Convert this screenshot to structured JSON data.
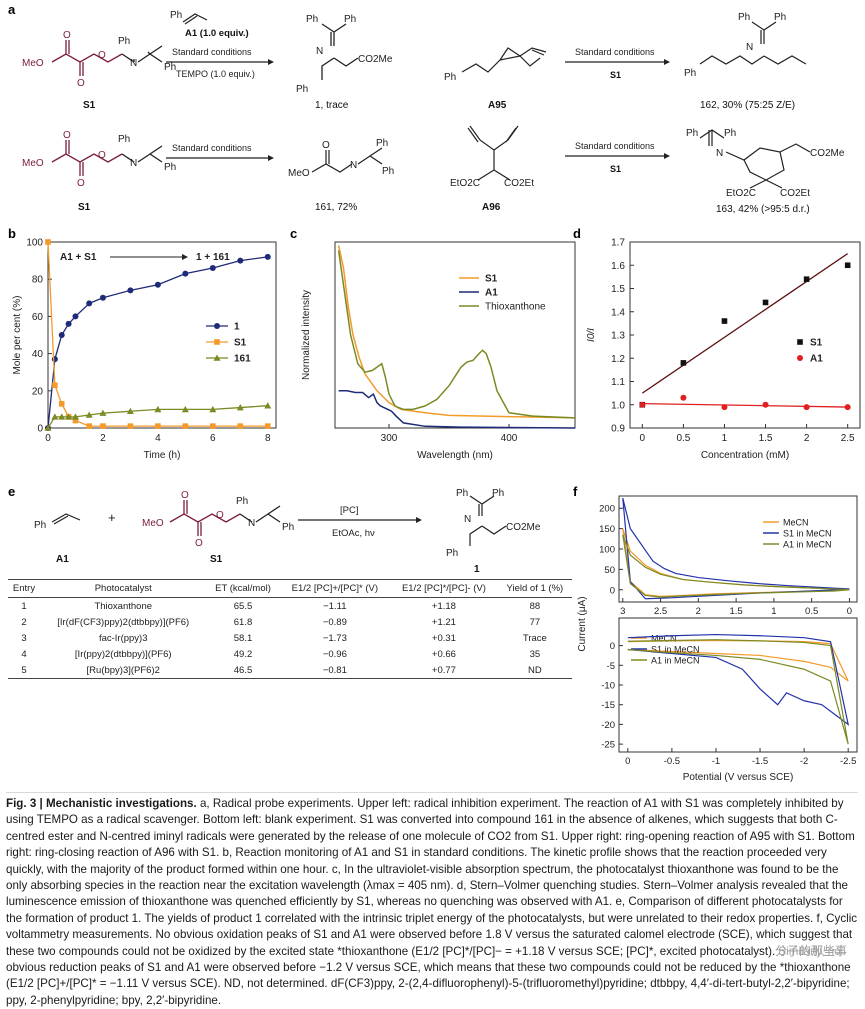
{
  "panels": {
    "a": "a",
    "b": "b",
    "c": "c",
    "d": "d",
    "e": "e",
    "f": "f"
  },
  "schemes": {
    "upper_left": {
      "s1_label": "S1",
      "reagent": "A1 (1.0 equiv.)",
      "cond1": "Standard conditions",
      "cond2": "TEMPO (1.0 equiv.)",
      "product": "1, trace"
    },
    "upper_right": {
      "substrate": "A95",
      "cond1": "Standard conditions",
      "cond2": "S1",
      "product": "162, 30% (75:25 Z/E)"
    },
    "lower_left": {
      "s1_label": "S1",
      "cond1": "Standard conditions",
      "product": "161, 72%"
    },
    "lower_right": {
      "substrate": "A96",
      "cond1": "Standard conditions",
      "cond2": "S1",
      "product": "163, 42% (>95:5 d.r.)"
    },
    "atoms": {
      "meo": "MeO",
      "o": "O",
      "n": "N",
      "ph": "Ph",
      "co2me": "CO2Me",
      "eto2c": "EtO2C",
      "co2et": "CO2Et"
    }
  },
  "scheme_e": {
    "a1": "A1",
    "s1": "S1",
    "plus": "+",
    "pc": "[PC]",
    "cond": "EtOAc, hν",
    "product": "1"
  },
  "table": {
    "headers": [
      "Entry",
      "Photocatalyst",
      "ET (kcal/mol)",
      "E1/2 [PC]+/[PC]* (V)",
      "E1/2 [PC]*/[PC]- (V)",
      "Yield of 1 (%)"
    ],
    "rows": [
      [
        "1",
        "Thioxanthone",
        "65.5",
        "−1.11",
        "+1.18",
        "88"
      ],
      [
        "2",
        "[Ir(dF(CF3)ppy)2(dtbbpy)](PF6)",
        "61.8",
        "−0.89",
        "+1.21",
        "77"
      ],
      [
        "3",
        "fac-Ir(ppy)3",
        "58.1",
        "−1.73",
        "+0.31",
        "Trace"
      ],
      [
        "4",
        "[Ir(ppy)2(dtbbpy)](PF6)",
        "49.2",
        "−0.96",
        "+0.66",
        "35"
      ],
      [
        "5",
        "[Ru(bpy)3](PF6)2",
        "46.5",
        "−0.81",
        "+0.77",
        "ND"
      ]
    ]
  },
  "caption": {
    "title": "Fig. 3 | Mechanistic investigations.",
    "body": "a, Radical probe experiments. Upper left: radical inhibition experiment. The reaction of A1 with S1 was completely inhibited by using TEMPO as a radical scavenger. Bottom left: blank experiment. S1 was converted into compound 161 in the absence of alkenes, which suggests that both C-centred ester and N-centred iminyl radicals were generated by the release of one molecule of CO2 from S1. Upper right: ring-opening reaction of A95 with S1. Bottom right: ring-closing reaction of A96 with S1. b, Reaction monitoring of A1 and S1 in standard conditions. The kinetic profile shows that the reaction proceeded very quickly, with the majority of the product formed within one hour. c, In the ultraviolet-visible absorption spectrum, the photocatalyst thioxanthone was found to be the only absorbing species in the reaction near the excitation wavelength (λmax = 405 nm). d, Stern–Volmer quenching studies. Stern–Volmer analysis revealed that the luminescence emission of thioxanthone was quenched efficiently by S1, whereas no quenching was observed with A1. e, Comparison of different photocatalysts for the formation of product 1. The yields of product 1 correlated with the intrinsic triplet energy of the photocatalysts, but were unrelated to their redox properties. f, Cyclic voltammetry measurements. No obvious oxidation peaks of S1 and A1 were observed before 1.8 V versus the saturated calomel electrode (SCE), which suggest that these two compounds could not be oxidized by the excited state *thioxanthone (E1/2 [PC]*/[PC]− = +1.18 V versus SCE; [PC]*, excited photocatalyst). Similarly, no obvious reduction peaks of S1 and A1 were observed before −1.2 V versus SCE, which means that these two compounds could not be reduced by the *thioxanthone (E1/2 [PC]+/[PC]* = −1.11 V versus SCE). ND, not determined. dF(CF3)ppy, 2-(2,4-difluorophenyl)-5-(trifluoromethyl)pyridine; dtbbpy, 4,4′-di-tert-butyl-2,2′-bipyridine; ppy, 2-phenylpyridine; bpy, 2,2′-bipyridine."
  },
  "watermark": "分子的那些事",
  "colors": {
    "navy": "#1f2a78",
    "orange": "#f39a2b",
    "olive": "#7b8a22",
    "maroon": "#7a1e3a",
    "black": "#111111",
    "red": "#e02020"
  },
  "chart_data": [
    {
      "id": "b",
      "type": "line",
      "xlabel": "Time (h)",
      "ylabel": "Mole per cent (%)",
      "xlim": [
        0,
        8.3
      ],
      "ylim": [
        0,
        100
      ],
      "xticks": [
        0,
        2,
        4,
        6,
        8
      ],
      "yticks": [
        0,
        20,
        40,
        60,
        80,
        100
      ],
      "annotation": "A1 + S1 → 1 + 161",
      "annotation_left": "A1 + S1",
      "annotation_right": "1 + 161",
      "legend": "middle-right",
      "series": [
        {
          "name": "1",
          "color": "#1f2a78",
          "marker": "circle",
          "x": [
            0,
            0.25,
            0.5,
            0.75,
            1,
            1.5,
            2,
            3,
            4,
            5,
            6,
            7,
            8
          ],
          "y": [
            0,
            37,
            50,
            56,
            60,
            67,
            70,
            74,
            77,
            83,
            86,
            90,
            92
          ]
        },
        {
          "name": "S1",
          "color": "#f39a2b",
          "marker": "square",
          "x": [
            0,
            0.25,
            0.5,
            0.75,
            1,
            1.5,
            2,
            3,
            4,
            5,
            6,
            7,
            8
          ],
          "y": [
            100,
            23,
            13,
            6,
            4,
            1,
            1,
            1,
            1,
            1,
            1,
            1,
            1
          ]
        },
        {
          "name": "161",
          "color": "#7b8a22",
          "marker": "triangle",
          "x": [
            0,
            0.25,
            0.5,
            0.75,
            1,
            1.5,
            2,
            3,
            4,
            5,
            6,
            7,
            8
          ],
          "y": [
            0,
            6,
            6,
            6,
            6,
            7,
            8,
            9,
            10,
            10,
            10,
            11,
            12
          ]
        }
      ]
    },
    {
      "id": "c",
      "type": "line",
      "xlabel": "Wavelength (nm)",
      "ylabel": "Normalized intensity",
      "xlim": [
        255,
        455
      ],
      "ylim": [
        0,
        1.1
      ],
      "xticks": [
        300,
        400
      ],
      "legend": "top-right",
      "series": [
        {
          "name": "S1",
          "color": "#f39a2b",
          "x": [
            258,
            262,
            266,
            270,
            275,
            280,
            290,
            300,
            310,
            330,
            350,
            380,
            420,
            455
          ],
          "y": [
            1.08,
            0.95,
            0.72,
            0.55,
            0.42,
            0.32,
            0.22,
            0.15,
            0.11,
            0.09,
            0.075,
            0.07,
            0.065,
            0.06
          ]
        },
        {
          "name": "A1",
          "color": "#1f2a78",
          "x": [
            258,
            265,
            272,
            278,
            283,
            287,
            290,
            293,
            296,
            299,
            302,
            306,
            312,
            330,
            360,
            455
          ],
          "y": [
            0.22,
            0.22,
            0.21,
            0.21,
            0.18,
            0.2,
            0.15,
            0.13,
            0.12,
            0.11,
            0.1,
            0.07,
            0.03,
            0.01,
            0.005,
            0.0
          ]
        },
        {
          "name": "Thioxanthone",
          "color": "#7b8a22",
          "x": [
            258,
            262,
            268,
            274,
            280,
            286,
            290,
            294,
            297,
            300,
            305,
            312,
            320,
            330,
            340,
            350,
            360,
            365,
            370,
            375,
            378,
            381,
            385,
            390,
            400,
            420,
            455
          ],
          "y": [
            1.05,
            0.85,
            0.55,
            0.38,
            0.33,
            0.34,
            0.36,
            0.38,
            0.3,
            0.2,
            0.13,
            0.11,
            0.11,
            0.13,
            0.17,
            0.25,
            0.36,
            0.39,
            0.4,
            0.44,
            0.46,
            0.44,
            0.36,
            0.22,
            0.09,
            0.07,
            0.06
          ]
        }
      ]
    },
    {
      "id": "d",
      "type": "scatter",
      "xlabel": "Concentration (mM)",
      "ylabel": "I0/I",
      "xlim": [
        -0.15,
        2.65
      ],
      "ylim": [
        0.9,
        1.7
      ],
      "xticks": [
        0,
        0.5,
        1.0,
        1.5,
        2.0,
        2.5
      ],
      "yticks": [
        0.9,
        1.0,
        1.1,
        1.2,
        1.3,
        1.4,
        1.5,
        1.6,
        1.7
      ],
      "legend": "middle-right",
      "series": [
        {
          "name": "S1",
          "color": "#111111",
          "marker": "square",
          "x": [
            0,
            0.5,
            1.0,
            1.5,
            2.0,
            2.5
          ],
          "y": [
            1.0,
            1.18,
            1.36,
            1.44,
            1.54,
            1.6
          ],
          "fit": [
            [
              0,
              1.05
            ],
            [
              2.5,
              1.65
            ]
          ],
          "fit_color": "#5a0f0f"
        },
        {
          "name": "A1",
          "color": "#e02020",
          "marker": "circle",
          "x": [
            0,
            0.5,
            1.0,
            1.5,
            2.0,
            2.5
          ],
          "y": [
            1.0,
            1.03,
            0.99,
            1.0,
            0.99,
            0.99
          ],
          "fit": [
            [
              0,
              1.005
            ],
            [
              2.5,
              0.99
            ]
          ],
          "fit_color": "#e02020"
        }
      ]
    },
    {
      "id": "f_top",
      "type": "line",
      "xlabel": "",
      "ylabel": "Current (μA)",
      "xlim": [
        3.05,
        -0.1
      ],
      "ylim": [
        -30,
        230
      ],
      "xticks": [
        3.0,
        2.5,
        2.0,
        1.5,
        1.0,
        0.5,
        0
      ],
      "yticks": [
        0,
        50,
        100,
        150,
        200
      ],
      "legend": "upper-right",
      "series": [
        {
          "name": "MeCN",
          "color": "#f39a2b",
          "x": [
            3.0,
            2.9,
            2.7,
            2.5,
            2.2,
            1.8,
            1.4,
            1.0,
            0.6,
            0.2,
            0.0,
            0.2,
            0.6,
            1.0,
            1.4,
            1.8,
            2.2,
            2.5,
            2.7,
            2.9,
            3.0
          ],
          "y": [
            150,
            95,
            60,
            40,
            25,
            18,
            12,
            8,
            5,
            3,
            1,
            -2,
            -4,
            -6,
            -8,
            -10,
            -14,
            -16,
            -12,
            20,
            150
          ]
        },
        {
          "name": "S1 in MeCN",
          "color": "#2233aa",
          "x": [
            3.0,
            2.9,
            2.75,
            2.6,
            2.45,
            2.3,
            2.0,
            1.6,
            1.2,
            0.8,
            0.4,
            0.0,
            0.4,
            0.8,
            1.2,
            1.6,
            2.0,
            2.4,
            2.7,
            2.9,
            3.0
          ],
          "y": [
            225,
            150,
            110,
            70,
            52,
            40,
            30,
            22,
            15,
            10,
            6,
            2,
            -2,
            -5,
            -8,
            -12,
            -16,
            -20,
            -22,
            20,
            225
          ]
        },
        {
          "name": "A1 in MeCN",
          "color": "#7b8a22",
          "x": [
            3.0,
            2.9,
            2.7,
            2.5,
            2.2,
            1.8,
            1.4,
            1.0,
            0.6,
            0.2,
            0.0,
            0.2,
            0.6,
            1.0,
            1.4,
            1.8,
            2.2,
            2.5,
            2.7,
            2.9,
            3.0
          ],
          "y": [
            135,
            85,
            55,
            38,
            25,
            18,
            12,
            8,
            5,
            2,
            0,
            -3,
            -5,
            -7,
            -9,
            -12,
            -15,
            -18,
            -14,
            15,
            135
          ]
        }
      ]
    },
    {
      "id": "f_bottom",
      "type": "line",
      "xlabel": "Potential (V versus SCE)",
      "ylabel": "",
      "xlim": [
        0.1,
        -2.6
      ],
      "ylim": [
        -27,
        7
      ],
      "xticks": [
        0,
        -0.5,
        -1.0,
        -1.5,
        -2.0,
        -2.5
      ],
      "yticks": [
        0,
        -5,
        -10,
        -15,
        -20,
        -25
      ],
      "legend": "upper-left",
      "series": [
        {
          "name": "MeCN",
          "color": "#f39a2b",
          "x": [
            0.0,
            -0.5,
            -1.0,
            -1.5,
            -2.0,
            -2.3,
            -2.5,
            -2.3,
            -2.0,
            -1.5,
            -1.0,
            -0.5,
            0.0
          ],
          "y": [
            -1,
            -1.5,
            -2,
            -2.5,
            -4,
            -5.5,
            -9,
            0.5,
            1,
            1.2,
            1.3,
            1.2,
            1
          ]
        },
        {
          "name": "S1 in MeCN",
          "color": "#2233aa",
          "x": [
            0.0,
            -0.5,
            -1.0,
            -1.3,
            -1.5,
            -1.6,
            -1.7,
            -1.8,
            -2.0,
            -2.2,
            -2.5,
            -2.3,
            -2.0,
            -1.5,
            -1.0,
            -0.5,
            0.0
          ],
          "y": [
            -1,
            -2,
            -3,
            -6,
            -11,
            -13,
            -15,
            -12,
            -14,
            -15,
            -20,
            1,
            2,
            2.5,
            2.8,
            2.5,
            2
          ]
        },
        {
          "name": "A1 in MeCN",
          "color": "#7b8a22",
          "x": [
            0.0,
            -0.5,
            -1.0,
            -1.5,
            -2.0,
            -2.3,
            -2.5,
            -2.3,
            -2.0,
            -1.5,
            -1.0,
            -0.5,
            0.0
          ],
          "y": [
            -1,
            -1.8,
            -2.5,
            -3.5,
            -6,
            -9,
            -25,
            0,
            0.8,
            1.2,
            1.5,
            1.3,
            1.1
          ]
        }
      ]
    }
  ]
}
